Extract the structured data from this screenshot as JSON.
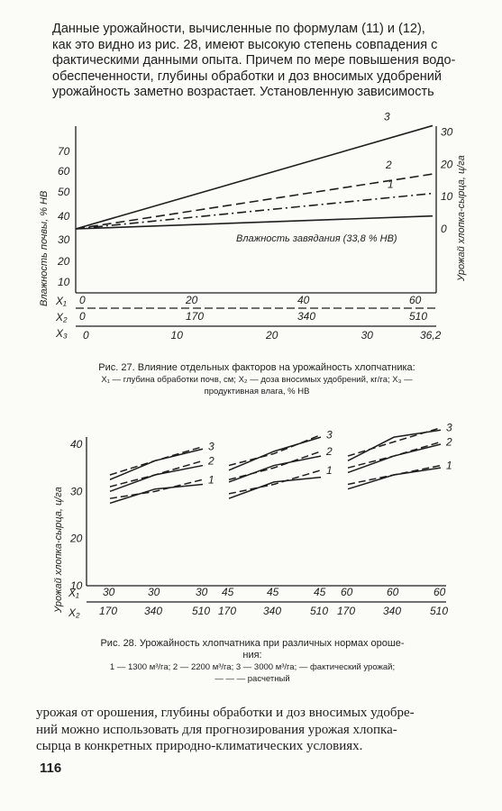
{
  "top_paragraph": [
    "Данные урожайности, вычисленные по формулам (11) и (12),",
    "как это видно из рис. 28, имеют высокую степень совпадения с",
    "фактическими данными опыта. Причем по мере повышения водо-",
    "обеспеченности, глубины обработки и доз вносимых удобрений",
    "урожайность заметно возрастает. Установленную зависимость"
  ],
  "fig27": {
    "caption_title": "Рис. 27. Влияние отдельных факторов на урожайность хлопчатника:",
    "caption_line2": "X₁ — глубина обработки почв, см; X₂ — доза вносимых удобрений, кг/га; X₃ —",
    "caption_line3": "продуктивная влага, % НВ",
    "left_axis_label": "Влажность почвы, % НВ",
    "right_axis_label": "Урожай хлопка-сырца, ц/га",
    "curve_label": "Влажность завядания (33,8 % НВ)"
  },
  "fig28": {
    "caption_title": "Рис. 28. Урожайность хлопчатника при различных нормах ороше-",
    "caption_title2": "ния:",
    "caption_line2": "1 — 1300 м³/га; 2 — 2200 м³/га; 3 — 3000 м³/га; — фактический урожай;",
    "caption_line3": "— — — расчетный",
    "y_axis_label": "Урожай хлопка-сырца, ц/га"
  },
  "bottom_paragraph": [
    "урожая от орошения, глубины обработки и доз вносимых удобре-",
    "ний можно использовать для прогнозирования урожая хлопка-",
    "сырца в конкретных природно-климатических условиях."
  ],
  "page_number": "116",
  "chart_data": [
    {
      "type": "line",
      "figure": "Рис. 27",
      "left_y_ticks": [
        "70",
        "60",
        "50",
        "40",
        "30",
        "20",
        "10"
      ],
      "right_y_ticks": [
        "30",
        "20",
        "10",
        "0"
      ],
      "x_rows": [
        {
          "name": "X₁",
          "ticks": [
            "0",
            "20",
            "40",
            "60"
          ]
        },
        {
          "name": "X₂",
          "ticks": [
            "0",
            "170",
            "340",
            "510"
          ]
        },
        {
          "name": "X₃",
          "ticks": [
            "0",
            "10",
            "20",
            "30",
            "36,2"
          ]
        }
      ],
      "series": [
        {
          "name": "3",
          "style": "solid",
          "values": [
            0,
            32
          ]
        },
        {
          "name": "2",
          "style": "dashed",
          "values": [
            0,
            17
          ]
        },
        {
          "name": "1",
          "style": "dash-dot",
          "values": [
            0,
            11
          ]
        },
        {
          "name": "Влажность завядания (33,8 % НВ)",
          "style": "solid",
          "values": [
            0,
            4
          ]
        }
      ]
    },
    {
      "type": "line",
      "figure": "Рис. 28",
      "y_ticks": [
        "40",
        "30",
        "20",
        "10"
      ],
      "ylim": [
        10,
        40
      ],
      "x_rows": [
        {
          "name": "X₁",
          "ticks": [
            "30",
            "30",
            "30",
            "45",
            "45",
            "45",
            "60",
            "60",
            "60"
          ]
        },
        {
          "name": "X₂",
          "ticks": [
            "170",
            "340",
            "510",
            "170",
            "340",
            "510",
            "170",
            "340",
            "510"
          ]
        }
      ],
      "series_labels": [
        "3",
        "2",
        "1"
      ],
      "groups": [
        {
          "x1": 30,
          "x2": [
            170,
            340,
            510
          ],
          "fact": {
            "1": [
              27.5,
              30.5,
              31.5
            ],
            "2": [
              30,
              33.5,
              35.5
            ],
            "3": [
              32.5,
              36.5,
              39
            ]
          },
          "calc": {
            "1": [
              28.5,
              30,
              32.5
            ],
            "2": [
              31,
              33.5,
              36.5
            ],
            "3": [
              33.5,
              36.5,
              39.5
            ]
          }
        },
        {
          "x1": 45,
          "x2": [
            170,
            340,
            510
          ],
          "fact": {
            "1": [
              28.5,
              32,
              33
            ],
            "2": [
              32,
              35.5,
              37.5
            ],
            "3": [
              34.5,
              38.5,
              41.5
            ]
          },
          "calc": {
            "1": [
              29.5,
              31.5,
              34.5
            ],
            "2": [
              32.5,
              35,
              38.5
            ],
            "3": [
              35.5,
              38,
              42
            ]
          }
        },
        {
          "x1": 60,
          "x2": [
            170,
            340,
            510
          ],
          "fact": {
            "1": [
              30.5,
              33.5,
              35
            ],
            "2": [
              34,
              37.5,
              40
            ],
            "3": [
              36.5,
              41.5,
              43
            ]
          },
          "calc": {
            "1": [
              31.5,
              33.5,
              35.5
            ],
            "2": [
              35,
              37.5,
              40.5
            ],
            "3": [
              37.5,
              40.5,
              43.5
            ]
          }
        }
      ]
    }
  ]
}
